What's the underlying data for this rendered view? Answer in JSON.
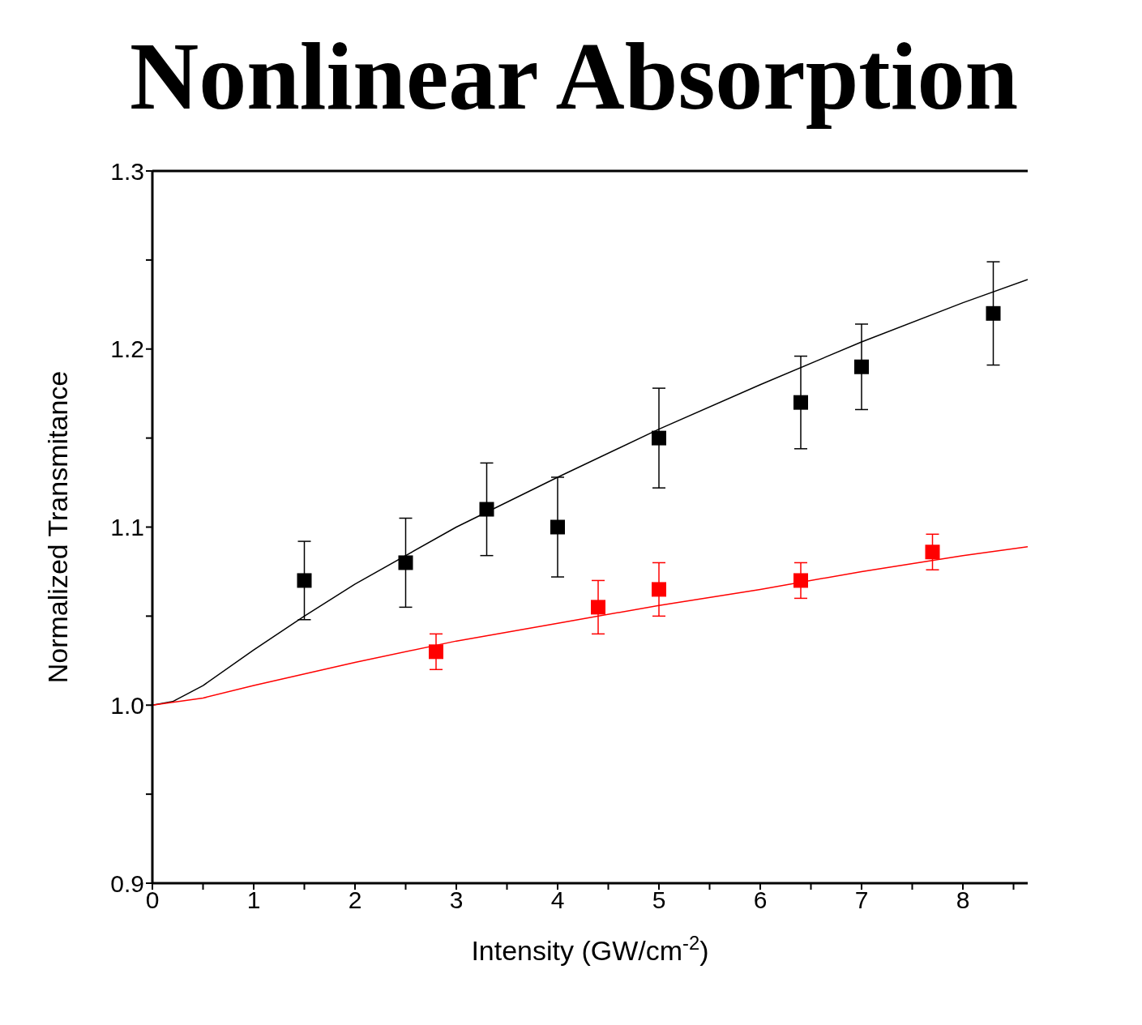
{
  "chart_data": {
    "type": "scatter",
    "title": "Nonlinear Absorption",
    "xlabel": "Intensity (GW/cm$^{-2}$)",
    "ylabel": "Normalized Transmitance",
    "xlim": [
      0,
      8.64
    ],
    "xticks": [
      0,
      {
        "value": 0.5,
        "label": null
      },
      1,
      {
        "value": 1.5,
        "label": null
      },
      2,
      {
        "value": 2.5,
        "label": null
      },
      3,
      {
        "value": 3.5,
        "label": null
      },
      4,
      {
        "value": 4.5,
        "label": null
      },
      5,
      {
        "value": 5.5,
        "label": null
      },
      6,
      {
        "value": 6.5,
        "label": null
      },
      7,
      {
        "value": 7.5,
        "label": null
      },
      8,
      {
        "value": 8.5,
        "label": null
      }
    ],
    "ylim": [
      0.9,
      1.3
    ],
    "yticks": [
      {
        "value": 0.9,
        "label": "0.9"
      },
      {
        "value": 0.95,
        "label": null
      },
      {
        "value": 1.0,
        "label": "1.0"
      },
      {
        "value": 1.05,
        "label": null
      },
      {
        "value": 1.1,
        "label": "1.1"
      },
      {
        "value": 1.15,
        "label": null
      },
      {
        "value": 1.2,
        "label": "1.2"
      },
      {
        "value": 1.25,
        "label": null
      },
      {
        "value": 1.3,
        "label": "1.3"
      }
    ],
    "grid": false,
    "legend": false,
    "marker": "square",
    "series": [
      {
        "color": "#000000",
        "x": [
          1.5,
          2.5,
          3.3,
          4.0,
          5.0,
          6.4,
          7.0,
          8.3
        ],
        "values": [
          1.07,
          1.08,
          1.11,
          1.1,
          1.15,
          1.17,
          1.19,
          1.22
        ],
        "errors": [
          0.022,
          0.025,
          0.026,
          0.028,
          0.028,
          0.026,
          0.024,
          0.029
        ]
      },
      {
        "color": "#ff0000",
        "x": [
          2.8,
          4.4,
          5.0,
          6.4,
          7.7
        ],
        "values": [
          1.03,
          1.055,
          1.065,
          1.07,
          1.086
        ],
        "errors": [
          0.01,
          0.015,
          0.015,
          0.01,
          0.01
        ]
      },
      {
        "type": "line",
        "marker": "none",
        "color": "#000000",
        "x": [
          0,
          0.2,
          0.5,
          1,
          1.5,
          2,
          3,
          4,
          5,
          6,
          7,
          8,
          8.64
        ],
        "values": [
          1.0,
          1.002,
          1.011,
          1.031,
          1.05,
          1.068,
          1.1,
          1.128,
          1.155,
          1.18,
          1.204,
          1.226,
          1.239
        ]
      },
      {
        "type": "line",
        "marker": "none",
        "color": "#ff0000",
        "x": [
          0,
          0.5,
          1,
          2,
          3,
          4,
          5,
          6,
          7,
          8,
          8.64
        ],
        "values": [
          1.0,
          1.004,
          1.011,
          1.024,
          1.036,
          1.046,
          1.056,
          1.065,
          1.075,
          1.084,
          1.089
        ]
      }
    ]
  }
}
